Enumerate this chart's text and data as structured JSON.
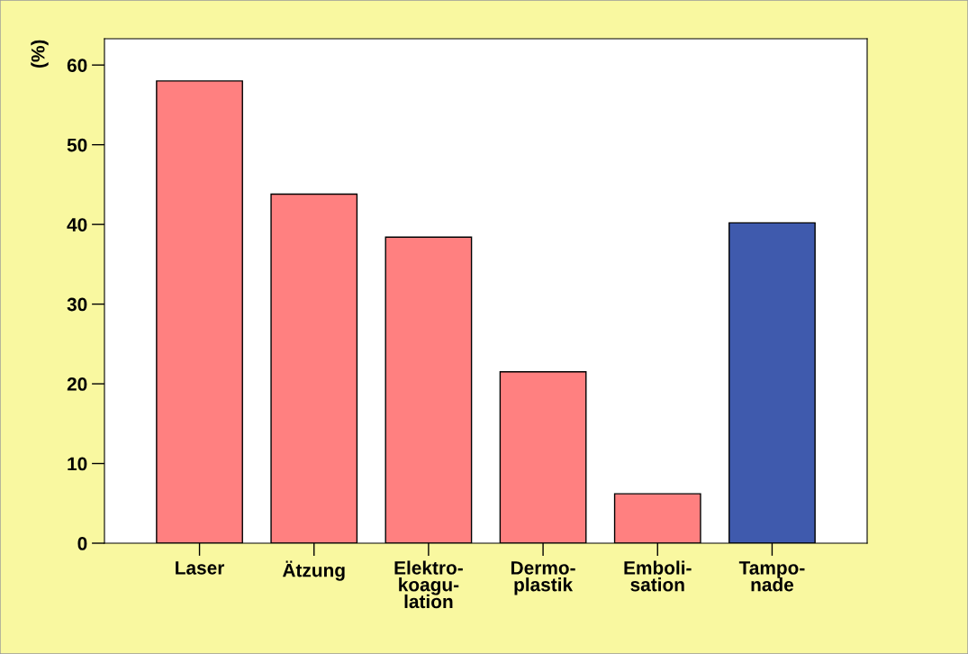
{
  "chart_data": {
    "type": "bar",
    "ylabel": "(%)",
    "categories": [
      "Laser",
      "Ätzung",
      "Elektro-\nkoagu-\nlation",
      "Dermo-\nplastik",
      "Emboli-\nsation",
      "Tampo-\nnade"
    ],
    "values": [
      58,
      43.8,
      38.4,
      21.5,
      6.2,
      40.2
    ],
    "colors": [
      "#ff8080",
      "#ff8080",
      "#ff8080",
      "#ff8080",
      "#ff8080",
      "#3f5aad"
    ],
    "ylim": [
      0,
      63.3
    ],
    "yticks": [
      0,
      10,
      20,
      30,
      40,
      50,
      60
    ],
    "grid": false,
    "legend": false
  }
}
